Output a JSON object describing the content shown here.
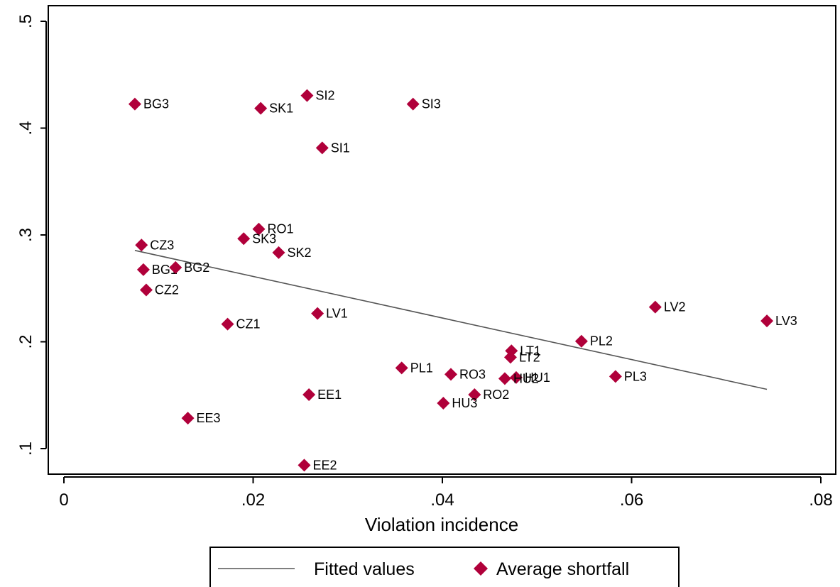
{
  "chart_data": {
    "type": "scatter",
    "xlabel": "Violation incidence",
    "ylabel": "",
    "xlim": [
      -0.0025,
      0.08
    ],
    "ylim": [
      0.075,
      0.52
    ],
    "xticks": [
      {
        "value": 0,
        "label": "0"
      },
      {
        "value": 0.02,
        "label": ".02"
      },
      {
        "value": 0.04,
        "label": ".04"
      },
      {
        "value": 0.06,
        "label": ".06"
      },
      {
        "value": 0.08,
        "label": ".08"
      }
    ],
    "yticks": [
      {
        "value": 0.1,
        "label": ".1"
      },
      {
        "value": 0.2,
        "label": ".2"
      },
      {
        "value": 0.3,
        "label": ".3"
      },
      {
        "value": 0.4,
        "label": ".4"
      },
      {
        "value": 0.5,
        "label": ".5"
      }
    ],
    "grid": false,
    "legend_position": "bottom",
    "series": [
      {
        "name": "Average shortfall",
        "kind": "scatter",
        "color": "#b0003a",
        "points": [
          {
            "label": "BG3",
            "x": 0.0075,
            "y": 0.4225
          },
          {
            "label": "SK1",
            "x": 0.0208,
            "y": 0.4185
          },
          {
            "label": "SI2",
            "x": 0.0257,
            "y": 0.4305
          },
          {
            "label": "SI3",
            "x": 0.0369,
            "y": 0.4225
          },
          {
            "label": "SI1",
            "x": 0.0273,
            "y": 0.3815
          },
          {
            "label": "RO1",
            "x": 0.0206,
            "y": 0.3055
          },
          {
            "label": "SK3",
            "x": 0.019,
            "y": 0.2965
          },
          {
            "label": "CZ3",
            "x": 0.0082,
            "y": 0.2905
          },
          {
            "label": "SK2",
            "x": 0.0227,
            "y": 0.2835
          },
          {
            "label": "BG1",
            "x": 0.0084,
            "y": 0.2675
          },
          {
            "label": "BG2",
            "x": 0.0118,
            "y": 0.2695
          },
          {
            "label": "CZ2",
            "x": 0.0087,
            "y": 0.2485
          },
          {
            "label": "LV1",
            "x": 0.0268,
            "y": 0.2265
          },
          {
            "label": "CZ1",
            "x": 0.0173,
            "y": 0.2165
          },
          {
            "label": "LV2",
            "x": 0.0625,
            "y": 0.2325
          },
          {
            "label": "LV3",
            "x": 0.0743,
            "y": 0.2195
          },
          {
            "label": "PL2",
            "x": 0.0547,
            "y": 0.2005
          },
          {
            "label": "LT1",
            "x": 0.0473,
            "y": 0.1915
          },
          {
            "label": "LT2",
            "x": 0.0472,
            "y": 0.1855
          },
          {
            "label": "PL1",
            "x": 0.0357,
            "y": 0.1755
          },
          {
            "label": "RO3",
            "x": 0.0409,
            "y": 0.1695
          },
          {
            "label": "HU1",
            "x": 0.0478,
            "y": 0.1665
          },
          {
            "label": "HU2",
            "x": 0.0466,
            "y": 0.1655
          },
          {
            "label": "PL3",
            "x": 0.0583,
            "y": 0.1675
          },
          {
            "label": "EE1",
            "x": 0.0259,
            "y": 0.1505
          },
          {
            "label": "RO2",
            "x": 0.0434,
            "y": 0.1505
          },
          {
            "label": "HU3",
            "x": 0.0401,
            "y": 0.1425
          },
          {
            "label": "EE3",
            "x": 0.0131,
            "y": 0.1285
          },
          {
            "label": "EE2",
            "x": 0.0254,
            "y": 0.0845
          }
        ]
      },
      {
        "name": "Fitted values",
        "kind": "line",
        "color": "#555555",
        "points": [
          {
            "x": 0.0075,
            "y": 0.2855
          },
          {
            "x": 0.0743,
            "y": 0.1555
          }
        ]
      }
    ]
  }
}
